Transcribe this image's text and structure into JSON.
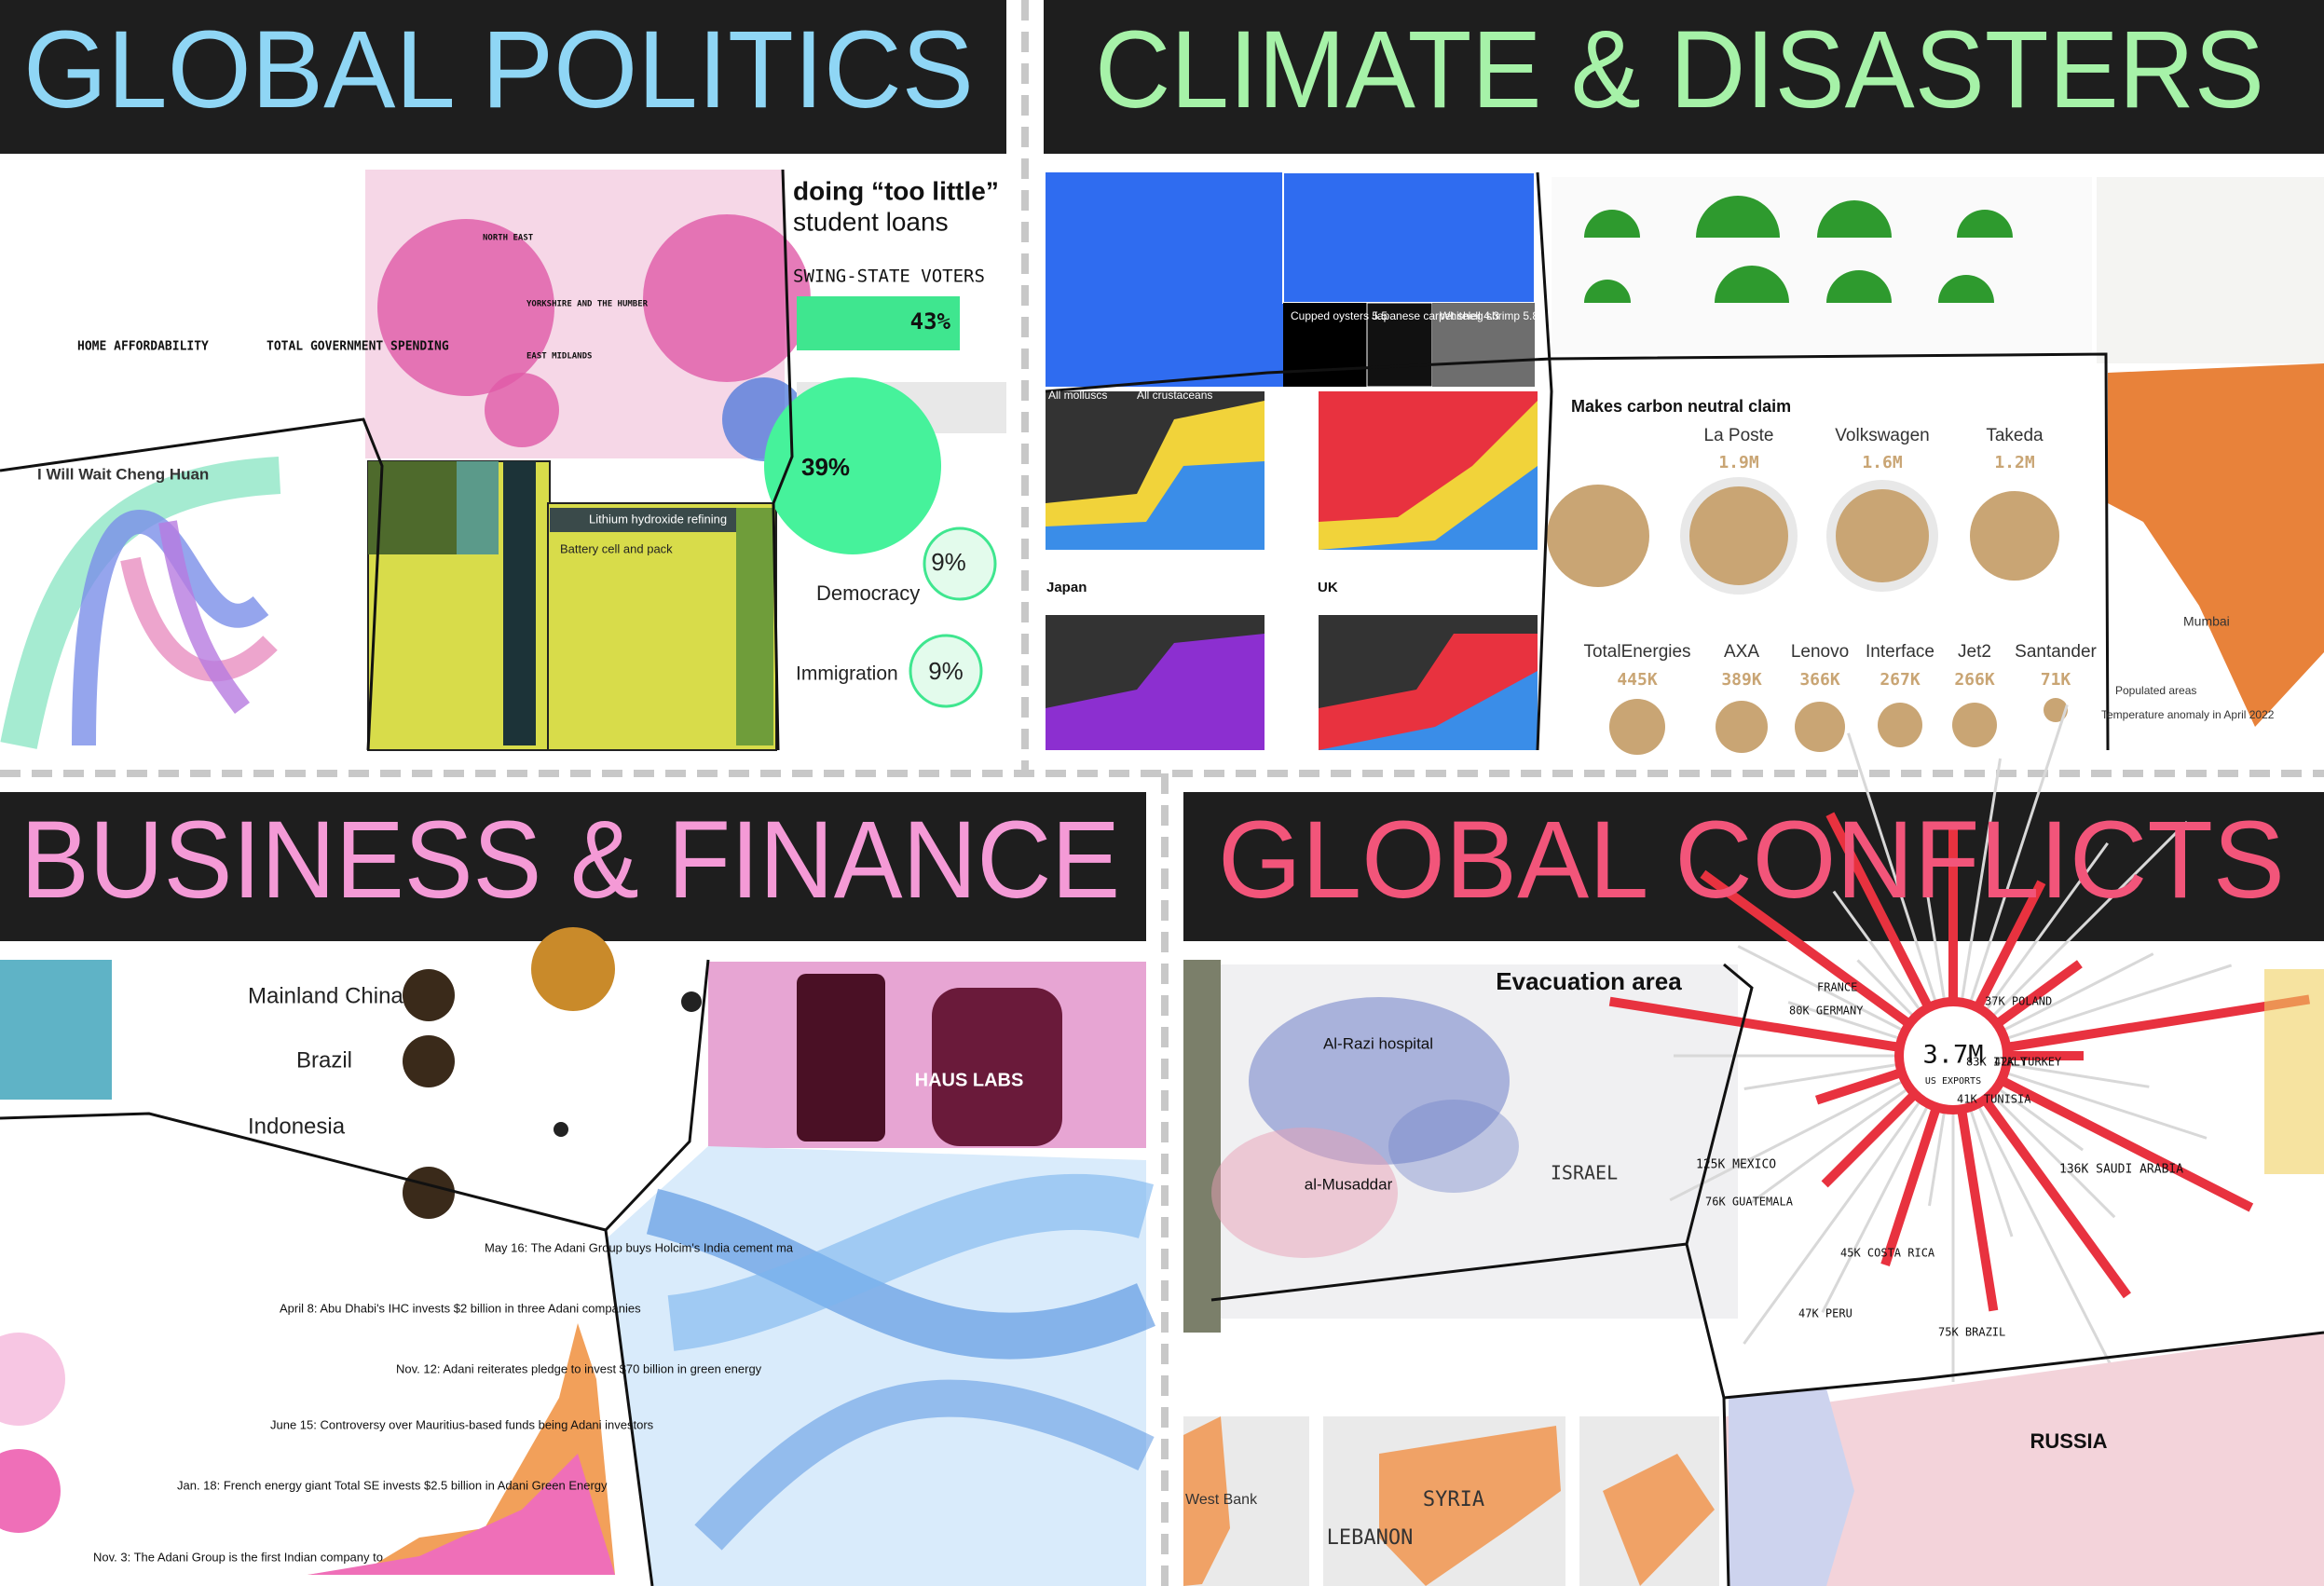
{
  "sections": [
    {
      "title": "GLOBAL POLITICS",
      "snippets": [
        "HOME AFFORDABILITY",
        "TOTAL GOVERNMENT SPENDING",
        "NORTH EAST",
        "YORKSHIRE AND THE HUMBER",
        "EAST MIDLANDS",
        "SWING-STATE VOTERS",
        "43%",
        "doing “too little”",
        "student loans",
        "I Will Wait Cheng Huan",
        "Lithium hydroxide refining",
        "Battery cell and pack",
        "39%",
        "Democracy",
        "9%",
        "Immigration",
        "9%"
      ]
    },
    {
      "title": "CLIMATE & DISASTERS",
      "snippets": [
        "Cupped oysters 5.5",
        "Japanese carpet shell 4.3",
        "Whiteleg shrimp 5.8",
        "All molluscs",
        "All crustaceans",
        "Japan",
        "UK",
        "Makes carbon neutral claim",
        "La Poste",
        "1.9M",
        "Volkswagen",
        "1.6M",
        "Takeda",
        "1.2M",
        "TotalEnergies",
        "445K",
        "AXA",
        "389K",
        "Lenovo",
        "366K",
        "Interface",
        "267K",
        "Jet2",
        "266K",
        "Santander",
        "71K",
        "Mumbai",
        "Populated areas",
        "Temperature anomaly in April 2022"
      ]
    },
    {
      "title": "BUSINESS & FINANCE",
      "snippets": [
        "Mainland China",
        "Brazil",
        "Indonesia",
        "HAUS LABS",
        "May 16: The Adani Group buys Holcim's India cement ma",
        "April 8: Abu Dhabi's IHC invests $2 billion in three Adani companies",
        "Nov. 12: Adani reiterates pledge to invest $70 billion in green energy",
        "June 15: Controversy over Mauritius-based funds being Adani investors",
        "Jan. 18: French energy giant Total SE invests $2.5 billion in Adani Green Energy",
        "Nov. 3: The Adani Group is the first Indian company to"
      ]
    },
    {
      "title": "GLOBAL CONFLICTS",
      "snippets": [
        "Evacuation area",
        "Al-Razi hospital",
        "al-Musaddar",
        "ISRAEL",
        "3.7M",
        "US EXPORTS",
        "FRANCE",
        "80K GERMANY",
        "37K POLAND",
        "83K ITALY",
        "42K TURKEY",
        "41K TUNISIA",
        "136K SAUDI ARABIA",
        "125K MEXICO",
        "76K GUATEMALA",
        "45K COSTA RICA",
        "47K PERU",
        "75K BRAZIL",
        "RUSSIA",
        "SYRIA",
        "LEBANON",
        "West Bank"
      ]
    }
  ]
}
